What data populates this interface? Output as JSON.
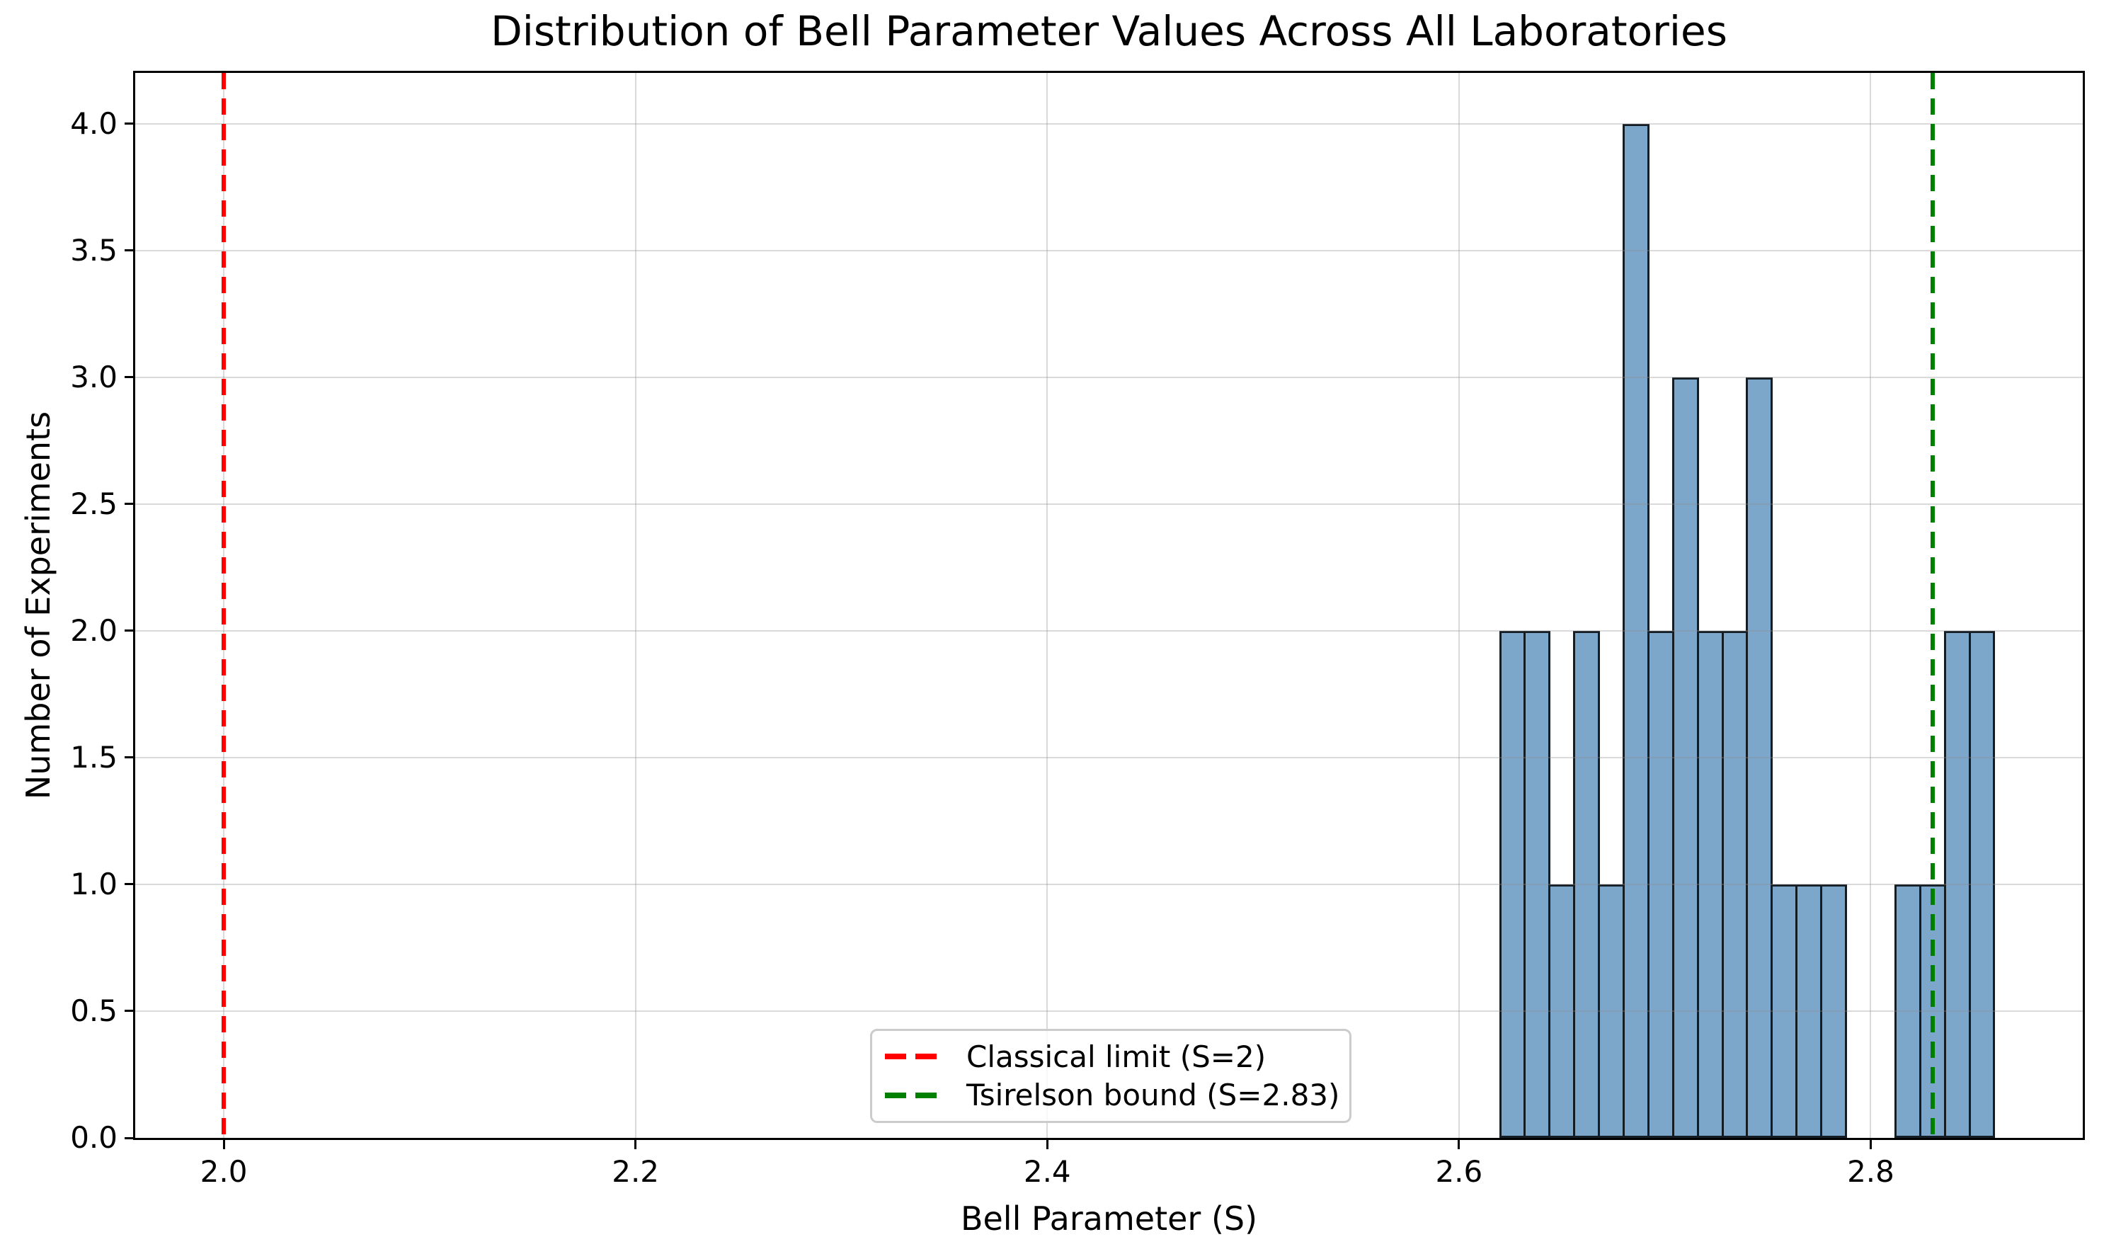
{
  "figure": {
    "title": "Distribution of Bell Parameter Values Across All Laboratories"
  },
  "chart_data": {
    "type": "bar",
    "subtype": "histogram",
    "title": "Distribution of Bell Parameter Values Across All Laboratories",
    "xlabel": "Bell Parameter (S)",
    "ylabel": "Number of Experiments",
    "bin_start": 2.62,
    "bin_width": 0.012,
    "bin_edges": [
      2.62,
      2.632,
      2.644,
      2.656,
      2.668,
      2.68,
      2.692,
      2.704,
      2.716,
      2.728,
      2.74,
      2.752,
      2.764,
      2.776,
      2.788,
      2.8,
      2.812,
      2.824,
      2.836,
      2.848,
      2.86
    ],
    "counts": [
      2,
      2,
      1,
      2,
      1,
      4,
      2,
      3,
      2,
      2,
      3,
      1,
      1,
      1,
      0,
      0,
      1,
      1,
      2,
      2
    ],
    "total_experiments": 33,
    "x_ticks": [
      2.0,
      2.2,
      2.4,
      2.6,
      2.8
    ],
    "x_tick_labels": [
      "2.0",
      "2.2",
      "2.4",
      "2.6",
      "2.8"
    ],
    "y_ticks": [
      0.0,
      0.5,
      1.0,
      1.5,
      2.0,
      2.5,
      3.0,
      3.5,
      4.0
    ],
    "y_tick_labels": [
      "0.0",
      "0.5",
      "1.0",
      "1.5",
      "2.0",
      "2.5",
      "3.0",
      "3.5",
      "4.0"
    ],
    "xlim": [
      1.957,
      2.903
    ],
    "ylim": [
      0,
      4.2
    ],
    "grid": true,
    "grid_over_bars": true,
    "bar_color": "#7CA7CB",
    "bar_edge_color": "#141C24",
    "grid_color": "#e7e7e7",
    "legend_position": "lower center",
    "vlines": [
      {
        "value": 2.0,
        "label": "Classical limit (S=2)",
        "color": "#ff0000",
        "style": "dashed"
      },
      {
        "value": 2.83,
        "label": "Tsirelson bound (S=2.83)",
        "color": "#008000",
        "style": "dashed"
      }
    ]
  }
}
